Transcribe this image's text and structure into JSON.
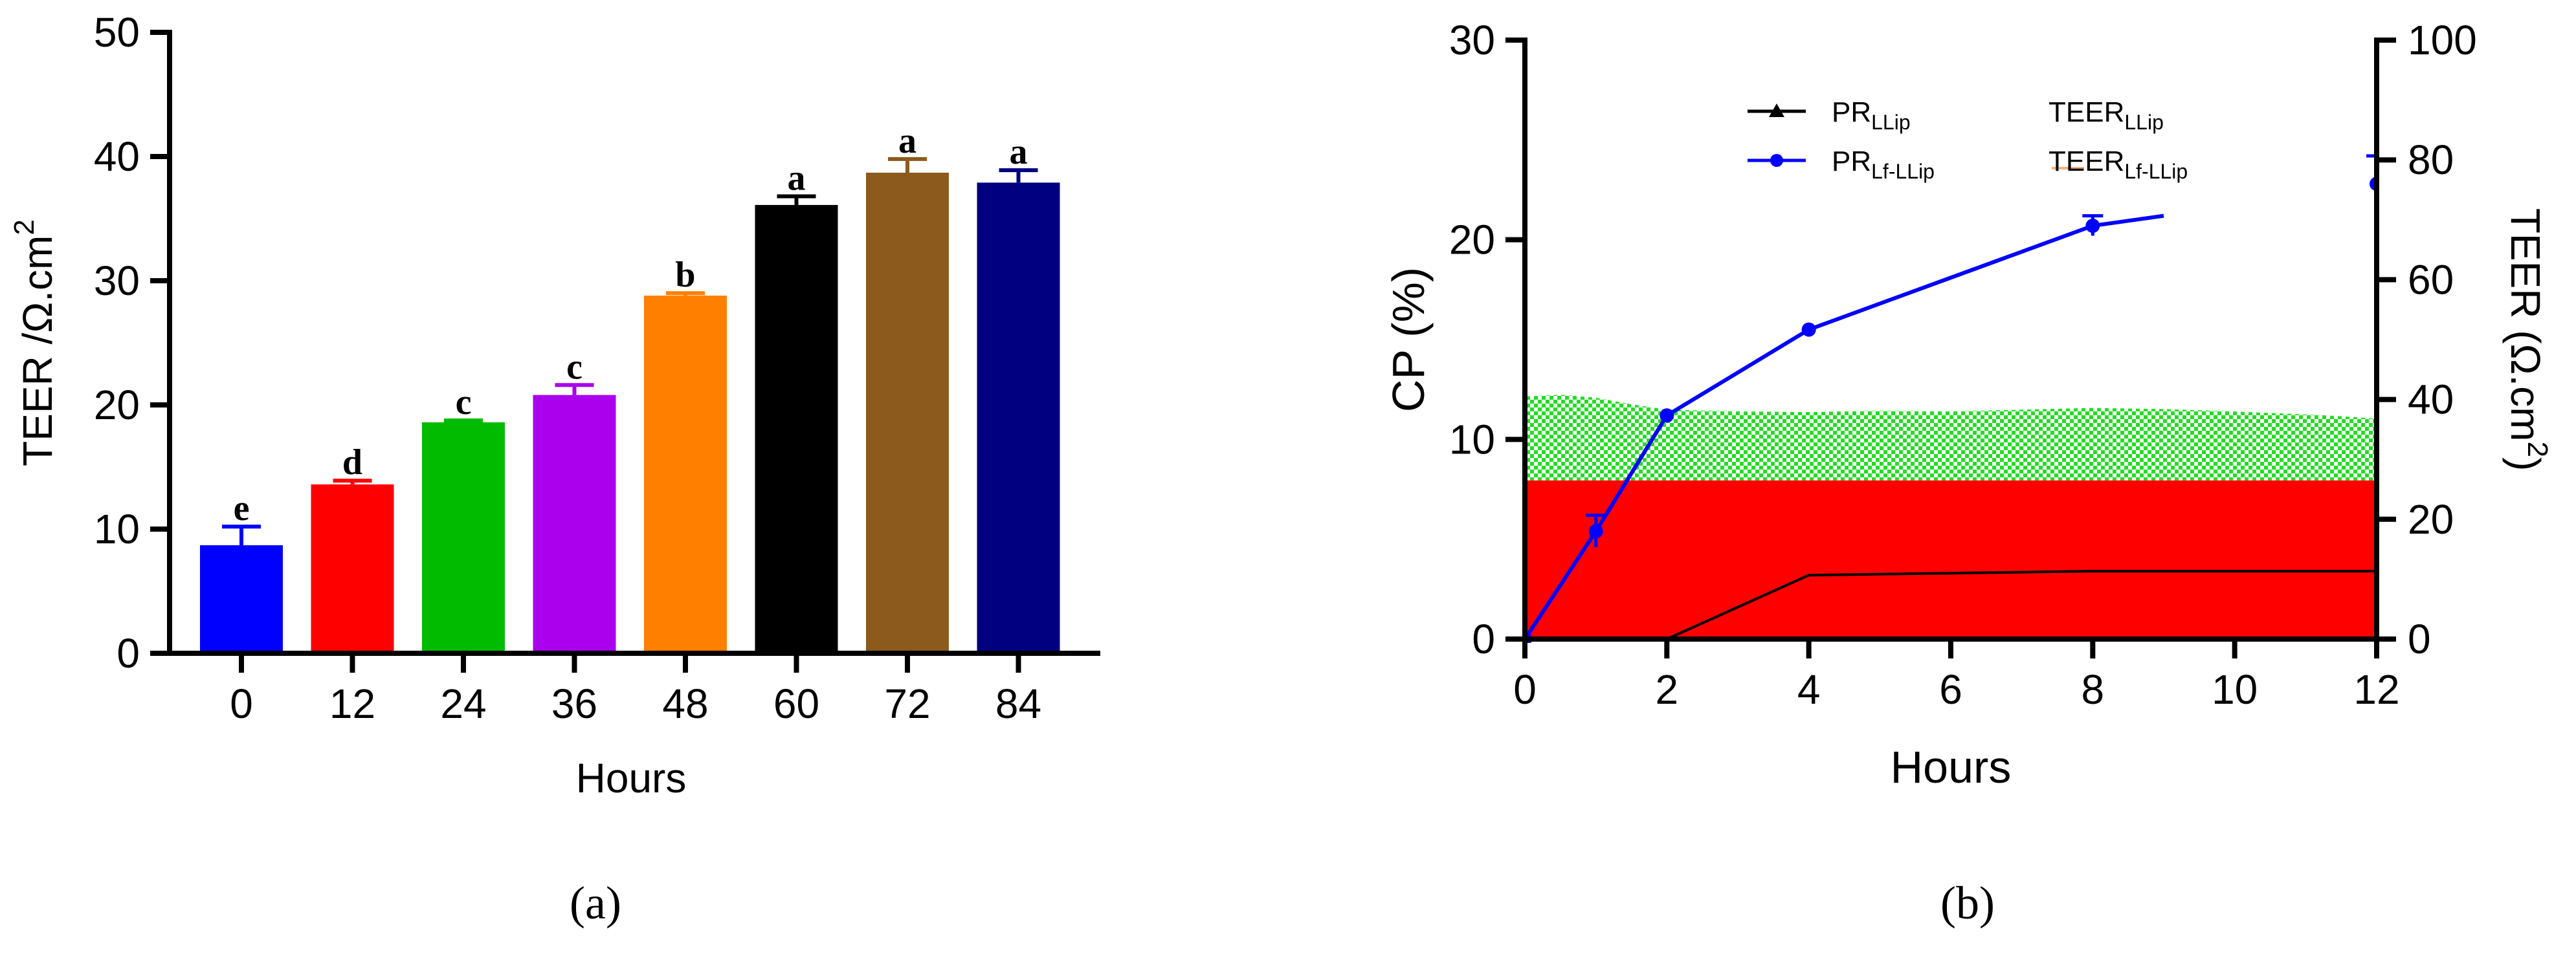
{
  "panel_labels": {
    "a": "(a)",
    "b": "(b)"
  },
  "chart_data": [
    {
      "type": "bar",
      "panel": "a",
      "xlabel": "Hours",
      "ylabel_main": "TEER /Ω.cm",
      "ylabel_sup": "2",
      "ylim": [
        0,
        50
      ],
      "yticks": [
        0,
        10,
        20,
        30,
        40,
        50
      ],
      "categories": [
        "0",
        "12",
        "24",
        "36",
        "48",
        "60",
        "72",
        "84"
      ],
      "values": [
        8.7,
        13.6,
        18.6,
        20.8,
        28.8,
        36.1,
        38.7,
        37.9
      ],
      "errors": [
        1.5,
        0.3,
        0.15,
        0.8,
        0.2,
        0.7,
        1.1,
        1.0
      ],
      "letters": [
        "e",
        "d",
        "c",
        "c",
        "b",
        "a",
        "a",
        "a"
      ],
      "colors": [
        "#0000ff",
        "#ff0000",
        "#00bb00",
        "#aa00ee",
        "#ff8000",
        "#000000",
        "#8b5a1c",
        "#000080"
      ]
    },
    {
      "type": "line",
      "panel": "b",
      "xlabel": "Hours",
      "ylabel_left": "CP (%)",
      "ylabel_right_main": "TEER (Ω.cm",
      "ylabel_right_sup": "2",
      "ylabel_right_close": ")",
      "xlim": [
        0,
        12
      ],
      "xticks": [
        0,
        2,
        4,
        6,
        8,
        10,
        12
      ],
      "ylim_left": [
        0,
        30
      ],
      "yticks_left": [
        0,
        10,
        20,
        30
      ],
      "ylim_right": [
        0,
        100
      ],
      "yticks_right": [
        0,
        20,
        40,
        60,
        80,
        100
      ],
      "legend": [
        {
          "base": "PR",
          "sub": "LLip",
          "marker": "triangle",
          "color": "#000000"
        },
        {
          "base": "PR",
          "sub": "Lf-LLip",
          "marker": "circle",
          "color": "#0000ff"
        },
        {
          "base": "TEER",
          "sub": "LLip",
          "marker": "none",
          "color": "#000000"
        },
        {
          "base": "TEER",
          "sub": "Lf-LLip",
          "marker": "line",
          "color": "#f4b183"
        }
      ],
      "series": [
        {
          "name": "PR_Lf-LLip",
          "color": "#0000ff",
          "x": [
            0,
            1,
            2,
            4,
            8,
            9
          ],
          "y": [
            0,
            5.4,
            11.2,
            15.5,
            20.7,
            21.2
          ],
          "markers": [
            0,
            1,
            2,
            4,
            8
          ],
          "error_x": [
            1,
            8,
            12
          ],
          "error_y": [
            5.4,
            20.7,
            22.8
          ],
          "error_size": [
            0.8,
            0.5,
            1.4
          ],
          "extra_point": {
            "x": 12,
            "y": 22.8
          }
        },
        {
          "name": "TEER_Lf-LLip",
          "color": "#ff0000",
          "fill": true,
          "x": [
            0,
            12
          ],
          "y_right": [
            26.5,
            26.5
          ]
        },
        {
          "name": "TEER_LLip",
          "color": "#00dd00",
          "fill": true,
          "pattern": "checker",
          "x": [
            0,
            0.5,
            1,
            1.5,
            2,
            3,
            4,
            5,
            6,
            7,
            8,
            9,
            10,
            11,
            11.5,
            12
          ],
          "y_right": [
            40.5,
            40.8,
            40.3,
            39.2,
            38.3,
            38.0,
            37.9,
            38.1,
            38.0,
            38.3,
            38.6,
            38.4,
            38.0,
            37.5,
            37.2,
            36.8
          ]
        },
        {
          "name": "PR_LLip",
          "color": "#000000",
          "x": [
            0,
            2,
            4,
            8,
            12
          ],
          "y": [
            0,
            0,
            3.2,
            3.4,
            3.4
          ]
        }
      ]
    }
  ]
}
